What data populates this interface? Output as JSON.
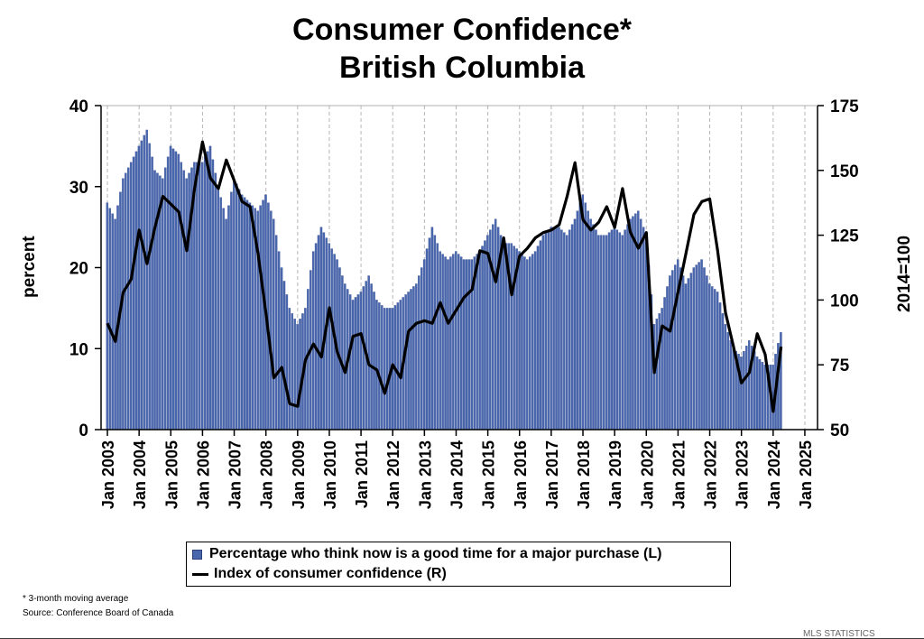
{
  "slide": {
    "title_line1": "Consumer Confidence*",
    "title_line2": "British Columbia",
    "footnote1": "* 3-month moving average",
    "footnote2": "Source: Conference Board of Canada",
    "bottom_label": "MLS STATISTICS"
  },
  "chart_data": {
    "type": "bar",
    "title": "Consumer Confidence* British Columbia",
    "xlabel": "",
    "ylabel": "percent",
    "ylabel_right": "2014=100",
    "ylim": [
      0,
      40
    ],
    "ylim_right": [
      50,
      175
    ],
    "yticks": [
      "0",
      "10",
      "20",
      "30",
      "40"
    ],
    "yticks_right": [
      "50",
      "75",
      "100",
      "125",
      "150",
      "175"
    ],
    "xticks": [
      "Jan 2003",
      "Jan 2004",
      "Jan 2005",
      "Jan 2006",
      "Jan 2007",
      "Jan 2008",
      "Jan 2009",
      "Jan 2010",
      "Jan 2011",
      "Jan 2012",
      "Jan 2013",
      "Jan 2014",
      "Jan 2015",
      "Jan 2016",
      "Jan 2017",
      "Jan 2018",
      "Jan 2019",
      "Jan 2020",
      "Jan 2021",
      "Jan 2022",
      "Jan 2023",
      "Jan 2024",
      "Jan 2025"
    ],
    "grid": "vertical dashed",
    "legend": "bottom-center",
    "colors": {
      "bars": "#4a67ad",
      "line": "#000000"
    },
    "series": [
      {
        "name": "Percentage who think now is a good time for a major purchase (L)",
        "type": "bar",
        "axis": "left",
        "x": [
          "2003-01",
          "2003-04",
          "2003-07",
          "2003-10",
          "2004-01",
          "2004-04",
          "2004-07",
          "2004-10",
          "2005-01",
          "2005-04",
          "2005-07",
          "2005-10",
          "2006-01",
          "2006-04",
          "2006-07",
          "2006-10",
          "2007-01",
          "2007-04",
          "2007-07",
          "2007-10",
          "2008-01",
          "2008-04",
          "2008-07",
          "2008-10",
          "2009-01",
          "2009-04",
          "2009-07",
          "2009-10",
          "2010-01",
          "2010-04",
          "2010-07",
          "2010-10",
          "2011-01",
          "2011-04",
          "2011-07",
          "2011-10",
          "2012-01",
          "2012-04",
          "2012-07",
          "2012-10",
          "2013-01",
          "2013-04",
          "2013-07",
          "2013-10",
          "2014-01",
          "2014-04",
          "2014-07",
          "2014-10",
          "2015-01",
          "2015-04",
          "2015-07",
          "2015-10",
          "2016-01",
          "2016-04",
          "2016-07",
          "2016-10",
          "2017-01",
          "2017-04",
          "2017-07",
          "2017-10",
          "2018-01",
          "2018-04",
          "2018-07",
          "2018-10",
          "2019-01",
          "2019-04",
          "2019-07",
          "2019-10",
          "2020-01",
          "2020-04",
          "2020-07",
          "2020-10",
          "2021-01",
          "2021-04",
          "2021-07",
          "2021-10",
          "2022-01",
          "2022-04",
          "2022-07",
          "2022-10",
          "2023-01",
          "2023-04",
          "2023-07",
          "2023-10",
          "2024-01",
          "2024-04"
        ],
        "values": [
          28,
          26,
          31,
          33,
          35,
          37,
          32,
          31,
          35,
          34,
          31,
          33,
          33,
          35,
          30,
          26,
          31,
          29,
          28,
          27,
          29,
          26,
          20,
          15,
          13,
          15,
          22,
          25,
          23,
          21,
          18,
          16,
          17,
          19,
          16,
          15,
          15,
          16,
          17,
          18,
          21,
          25,
          22,
          21,
          22,
          21,
          21,
          22,
          24,
          26,
          23,
          23,
          22,
          21,
          22,
          24,
          25,
          25,
          24,
          26,
          29,
          26,
          24,
          24,
          25,
          24,
          26,
          27,
          24,
          13,
          15,
          19,
          21,
          18,
          20,
          21,
          18,
          17,
          13,
          10,
          9,
          11,
          9,
          8,
          8,
          12
        ]
      },
      {
        "name": "Index of consumer confidence (R)",
        "type": "line",
        "axis": "right",
        "x": [
          "2003-01",
          "2003-04",
          "2003-07",
          "2003-10",
          "2004-01",
          "2004-04",
          "2004-07",
          "2004-10",
          "2005-01",
          "2005-04",
          "2005-07",
          "2005-10",
          "2006-01",
          "2006-04",
          "2006-07",
          "2006-10",
          "2007-01",
          "2007-04",
          "2007-07",
          "2007-10",
          "2008-01",
          "2008-04",
          "2008-07",
          "2008-10",
          "2009-01",
          "2009-04",
          "2009-07",
          "2009-10",
          "2010-01",
          "2010-04",
          "2010-07",
          "2010-10",
          "2011-01",
          "2011-04",
          "2011-07",
          "2011-10",
          "2012-01",
          "2012-04",
          "2012-07",
          "2012-10",
          "2013-01",
          "2013-04",
          "2013-07",
          "2013-10",
          "2014-01",
          "2014-04",
          "2014-07",
          "2014-10",
          "2015-01",
          "2015-04",
          "2015-07",
          "2015-10",
          "2016-01",
          "2016-04",
          "2016-07",
          "2016-10",
          "2017-01",
          "2017-04",
          "2017-07",
          "2017-10",
          "2018-01",
          "2018-04",
          "2018-07",
          "2018-10",
          "2019-01",
          "2019-04",
          "2019-07",
          "2019-10",
          "2020-01",
          "2020-04",
          "2020-07",
          "2020-10",
          "2021-01",
          "2021-04",
          "2021-07",
          "2021-10",
          "2022-01",
          "2022-04",
          "2022-07",
          "2022-10",
          "2023-01",
          "2023-04",
          "2023-07",
          "2023-10",
          "2024-01",
          "2024-04"
        ],
        "values": [
          91,
          84,
          103,
          108,
          127,
          114,
          128,
          140,
          137,
          134,
          119,
          143,
          161,
          147,
          143,
          154,
          146,
          138,
          136,
          118,
          95,
          70,
          74,
          60,
          59,
          77,
          83,
          78,
          97,
          80,
          72,
          86,
          87,
          75,
          73,
          64,
          75,
          70,
          88,
          91,
          92,
          91,
          99,
          91,
          96,
          101,
          104,
          119,
          118,
          107,
          124,
          102,
          117,
          120,
          124,
          126,
          127,
          129,
          140,
          153,
          131,
          127,
          130,
          136,
          128,
          143,
          126,
          120,
          126,
          72,
          90,
          88,
          103,
          118,
          133,
          138,
          139,
          119,
          95,
          82,
          68,
          72,
          87,
          79,
          57,
          82
        ]
      }
    ]
  }
}
